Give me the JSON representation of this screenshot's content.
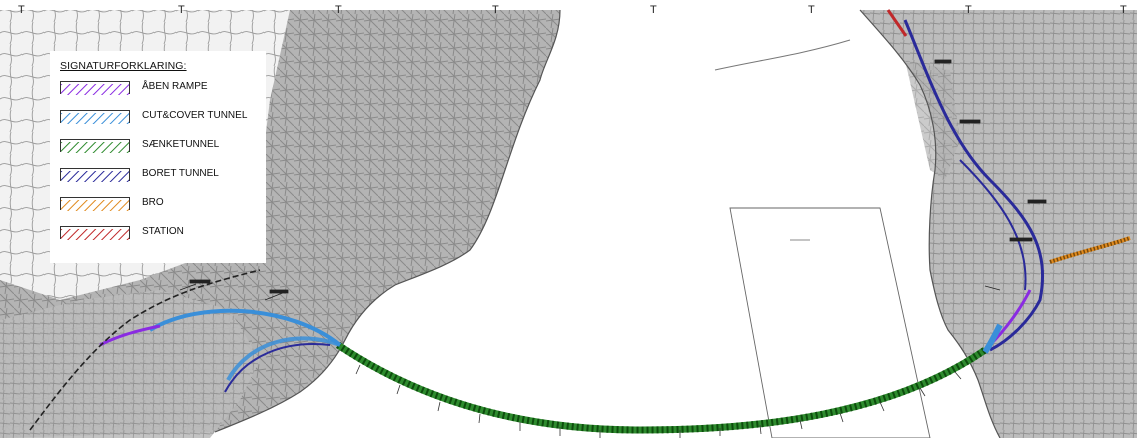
{
  "markers": [
    "T",
    "T",
    "T",
    "T",
    "T",
    "T",
    "T",
    "T"
  ],
  "legend": {
    "title": "SIGNATURFORKLARING:",
    "items": [
      {
        "label": "ÅBEN RAMPE",
        "color": "#8a2be2"
      },
      {
        "label": "CUT&COVER TUNNEL",
        "color": "#3a8fd9"
      },
      {
        "label": "SÆNKETUNNEL",
        "color": "#2e8b2e"
      },
      {
        "label": "BORET TUNNEL",
        "color": "#2a2a9a"
      },
      {
        "label": "BRO",
        "color": "#e08a1e"
      },
      {
        "label": "STATION",
        "color": "#c0282a"
      }
    ]
  },
  "colors": {
    "urban": "#b8b8b8",
    "street": "#8c8c8c",
    "sea": "#ffffff",
    "outline": "#555555"
  }
}
